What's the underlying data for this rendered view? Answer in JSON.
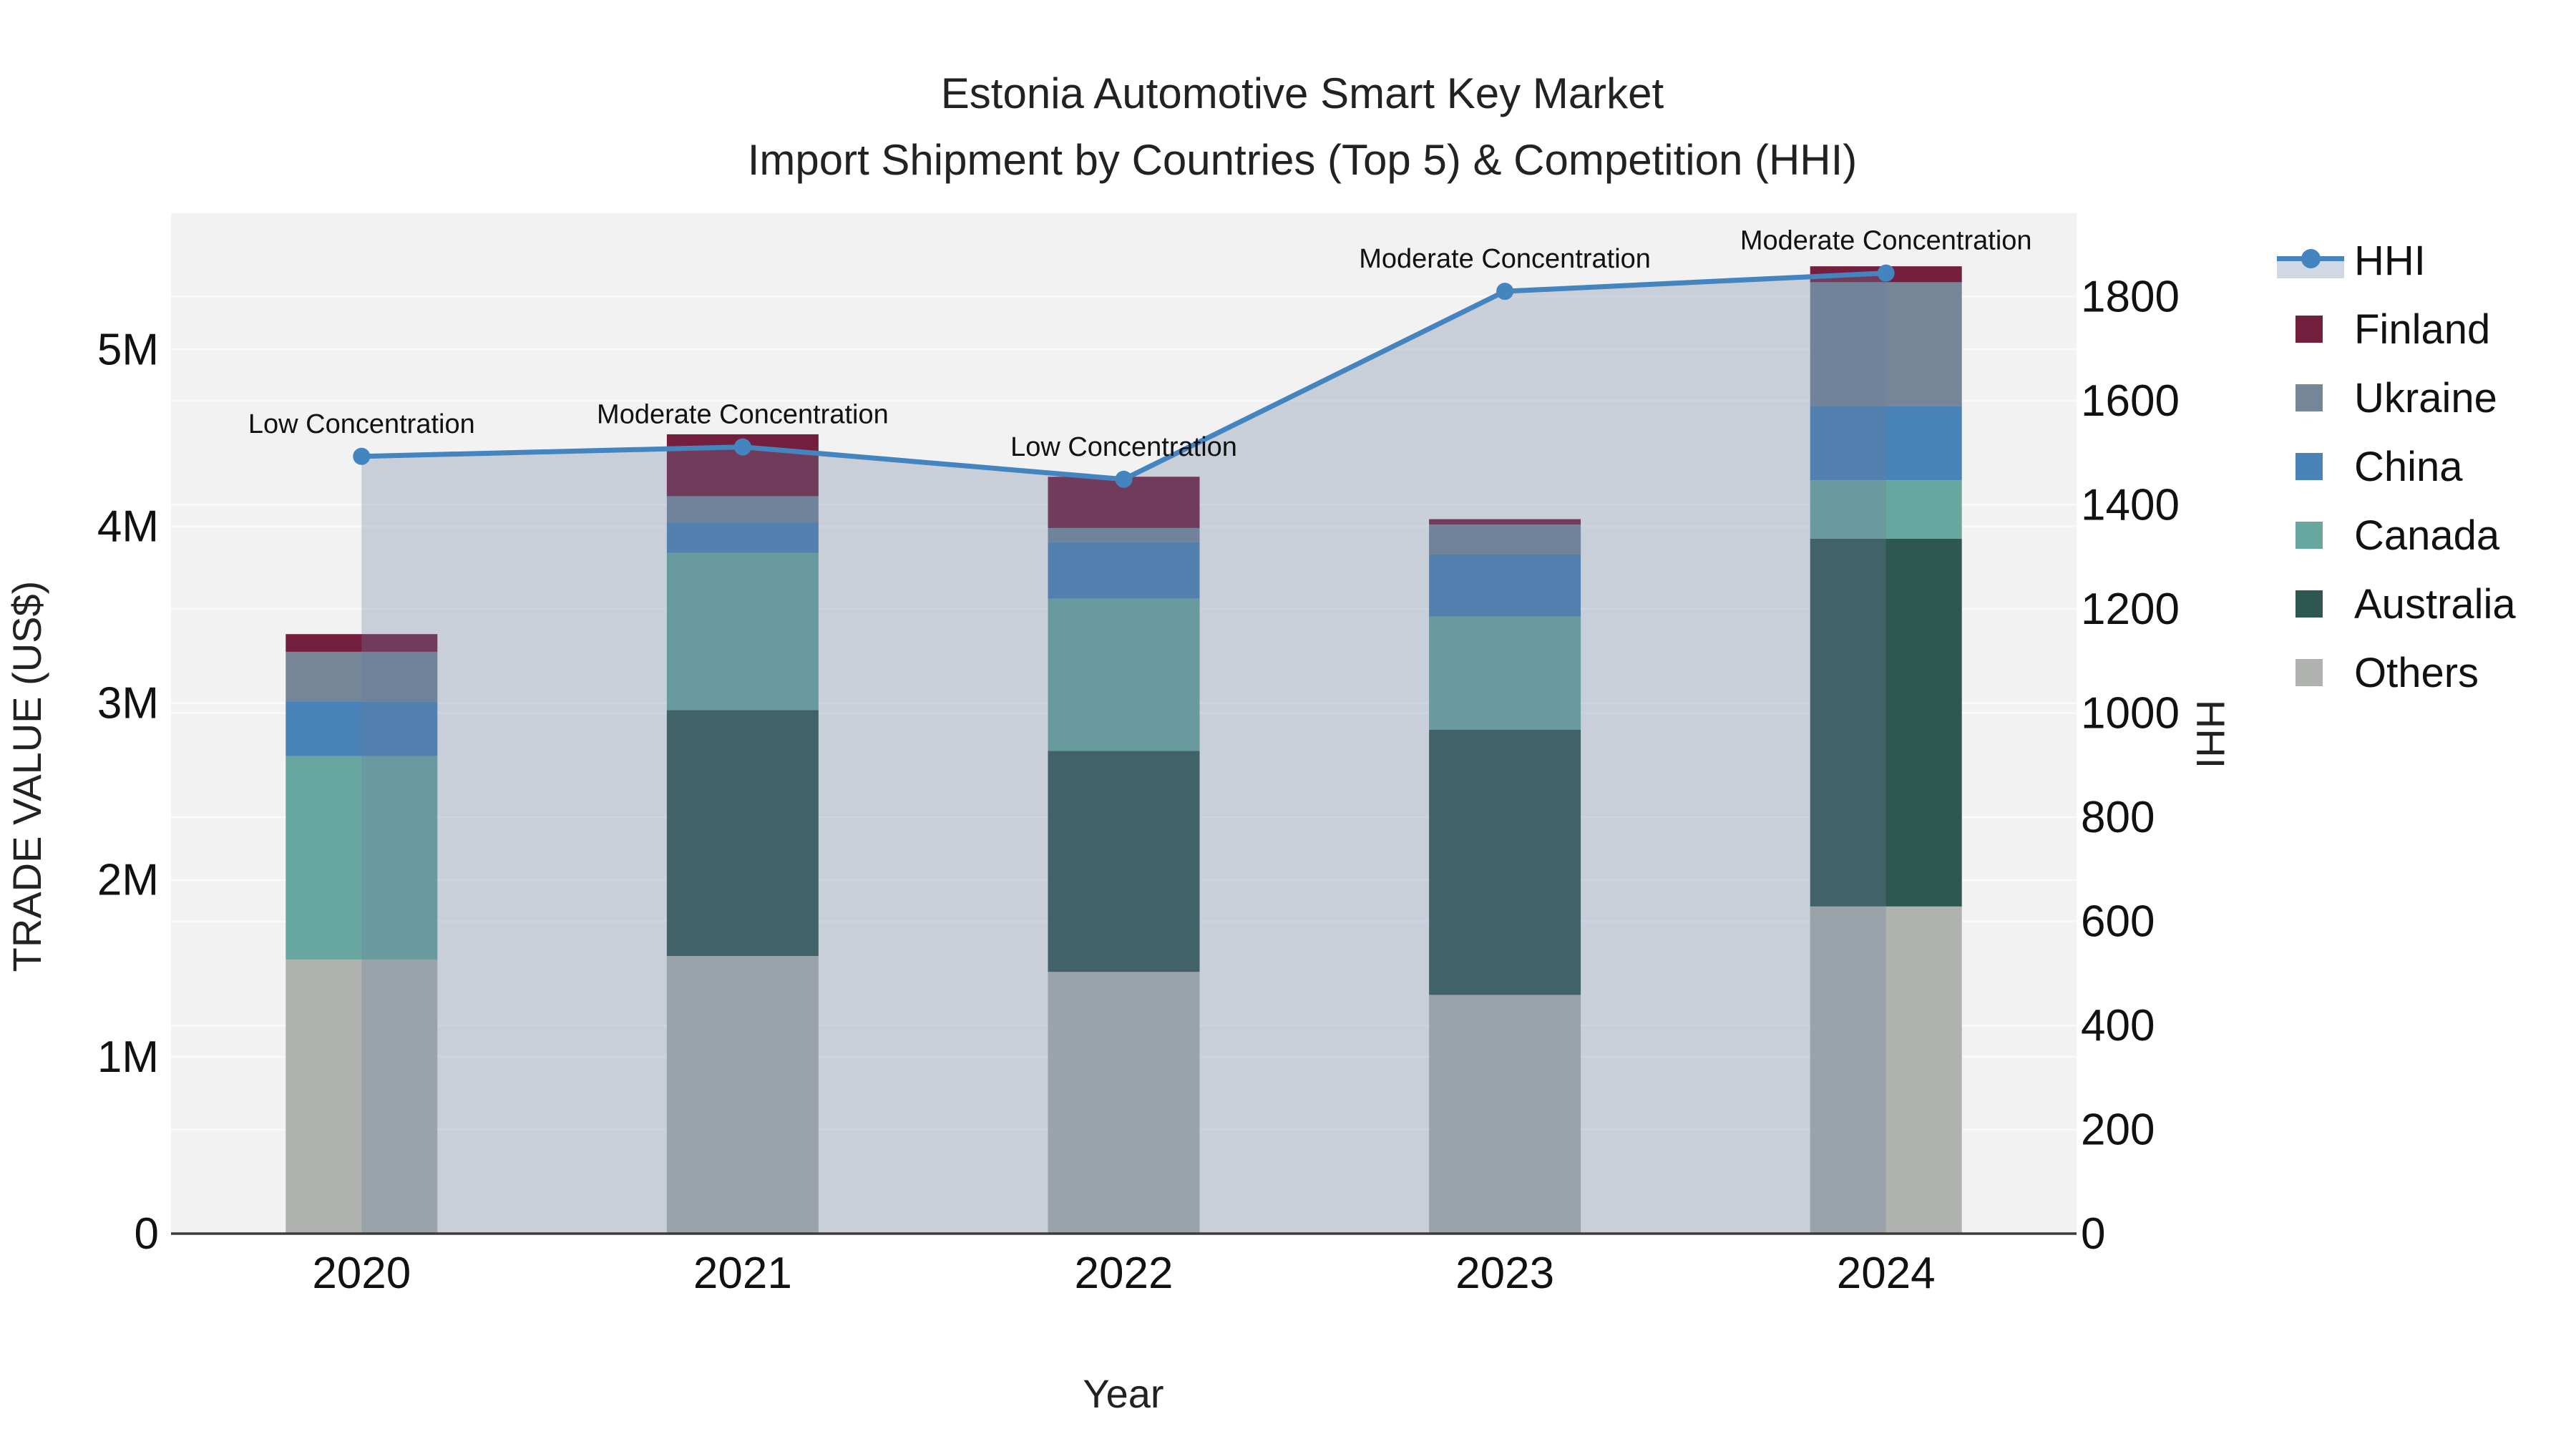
{
  "title": {
    "line1": "Estonia Automotive Smart Key Market",
    "line2": "Import Shipment by Countries (Top 5) & Competition (HHI)"
  },
  "axes": {
    "x": {
      "title": "Year",
      "categories": [
        "2020",
        "2021",
        "2022",
        "2023",
        "2024"
      ]
    },
    "y1": {
      "title": "TRADE VALUE (US$)",
      "tick_values": [
        0,
        1,
        2,
        3,
        4,
        5
      ],
      "tick_labels": [
        "0",
        "1M",
        "2M",
        "3M",
        "4M",
        "5M"
      ],
      "range": [
        0,
        5.77
      ],
      "unit": "million US$"
    },
    "y2": {
      "title": "HHI",
      "tick_values": [
        0,
        200,
        400,
        600,
        800,
        1000,
        1200,
        1400,
        1600,
        1800
      ],
      "tick_labels": [
        "0",
        "200",
        "400",
        "600",
        "800",
        "1000",
        "1200",
        "1400",
        "1600",
        "1800"
      ],
      "range": [
        0,
        1960
      ]
    }
  },
  "legend": {
    "items": [
      {
        "id": "hhi",
        "label": "HHI",
        "type": "line",
        "color": "#4484BF"
      },
      {
        "id": "finland",
        "label": "Finland",
        "type": "square",
        "color": "#751F3F"
      },
      {
        "id": "ukraine",
        "label": "Ukraine",
        "type": "square",
        "color": "#748698"
      },
      {
        "id": "china",
        "label": "China",
        "type": "square",
        "color": "#4983B7"
      },
      {
        "id": "canada",
        "label": "Canada",
        "type": "square",
        "color": "#68A7A0"
      },
      {
        "id": "australia",
        "label": "Australia",
        "type": "square",
        "color": "#2F5751"
      },
      {
        "id": "others",
        "label": "Others",
        "type": "square",
        "color": "#AFB2AF"
      }
    ]
  },
  "chart_data": {
    "type": "combo: stacked bar + line (secondary axis)",
    "title": "Estonia Automotive Smart Key Market — Import Shipment by Countries (Top 5) & Competition (HHI)",
    "categories": [
      "2020",
      "2021",
      "2022",
      "2023",
      "2024"
    ],
    "bar_unit": "million US$",
    "bar_stack_order": "bottom to top",
    "bar_series": [
      {
        "name": "Others",
        "color": "#AFB2AF",
        "values": [
          1.55,
          1.57,
          1.48,
          1.35,
          1.85
        ]
      },
      {
        "name": "Australia",
        "color": "#2F5751",
        "values": [
          0,
          1.39,
          1.25,
          1.5,
          2.08
        ]
      },
      {
        "name": "Canada",
        "color": "#68A7A0",
        "values": [
          1.15,
          0.89,
          0.86,
          0.64,
          0.33
        ]
      },
      {
        "name": "China",
        "color": "#4983B7",
        "values": [
          0.31,
          0.17,
          0.32,
          0.35,
          0.42
        ]
      },
      {
        "name": "Ukraine",
        "color": "#748698",
        "values": [
          0.28,
          0.15,
          0.08,
          0.17,
          0.7
        ]
      },
      {
        "name": "Finland",
        "color": "#751F3F",
        "values": [
          0.1,
          0.35,
          0.29,
          0.03,
          0.09
        ]
      }
    ],
    "bar_totals": [
      3.39,
      4.52,
      4.28,
      4.04,
      5.47
    ],
    "line_series": {
      "name": "HHI",
      "axis": "y2",
      "color": "#4484BF",
      "values": [
        1493,
        1511,
        1449,
        1810,
        1845
      ],
      "area_fill": "rgba(105,125,160,0.30)"
    },
    "annotations": [
      {
        "category": "2020",
        "text": "Low Concentration"
      },
      {
        "category": "2021",
        "text": "Moderate Concentration"
      },
      {
        "category": "2022",
        "text": "Low Concentration"
      },
      {
        "category": "2023",
        "text": "Moderate Concentration"
      },
      {
        "category": "2024",
        "text": "Moderate Concentration"
      }
    ],
    "styles": {
      "plot_bg": "#F2F2F2",
      "gridline": "#FAFAFB",
      "axis_line": "#3B3B3B",
      "tick_color": "#111111",
      "legend_fill_swatch": "#D2D8E3"
    },
    "layout_hints": {
      "grid": "horizontal gridlines for both y axes",
      "legend_position": "right",
      "area_fill_under_line": true
    }
  }
}
